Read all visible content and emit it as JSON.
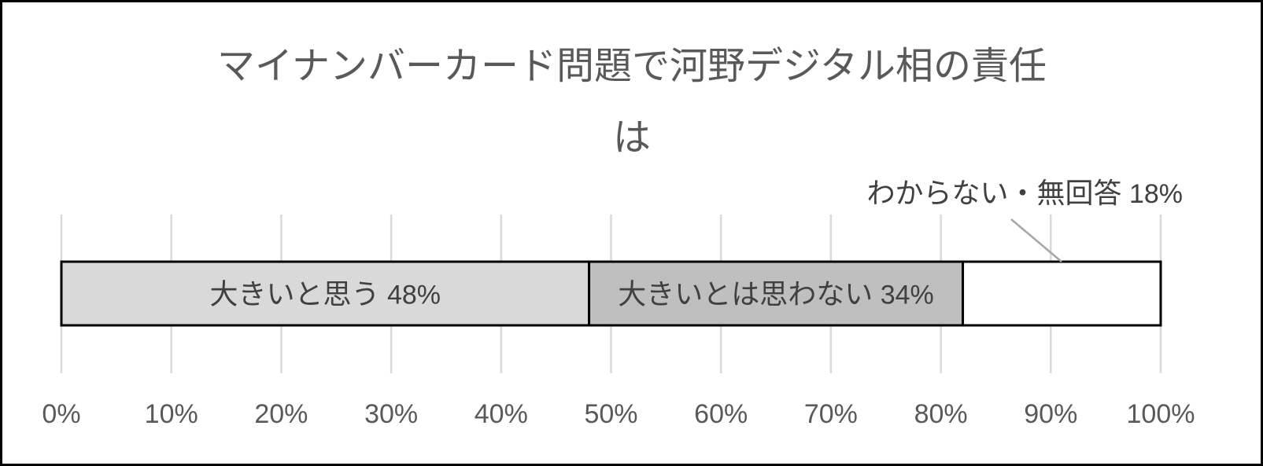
{
  "chart_data": {
    "type": "bar",
    "orientation": "horizontal",
    "stacked": "percent",
    "title_lines": [
      "マイナンバーカード問題で河野デジタル相の責任",
      "は"
    ],
    "xlim": [
      0,
      100
    ],
    "x_ticks": [
      "0%",
      "10%",
      "20%",
      "30%",
      "40%",
      "50%",
      "60%",
      "70%",
      "80%",
      "90%",
      "100%"
    ],
    "grid": "vertical",
    "legend": "none",
    "series": [
      {
        "name": "大きいと思う",
        "value": 48,
        "value_label": "48%",
        "color": "#d9d9d9",
        "label_position": "inside"
      },
      {
        "name": "大きいとは思わない",
        "value": 34,
        "value_label": "34%",
        "color": "#bfbfbf",
        "label_position": "inside"
      },
      {
        "name": "わからない・無回答",
        "value": 18,
        "value_label": "18%",
        "color": "#ffffff",
        "label_position": "callout-above"
      }
    ]
  },
  "style": {
    "title_color": "#595959",
    "text_color": "#404040",
    "grid_color": "#d9d9d9",
    "bar_outline": "#000000",
    "frame_border": "#000000"
  }
}
